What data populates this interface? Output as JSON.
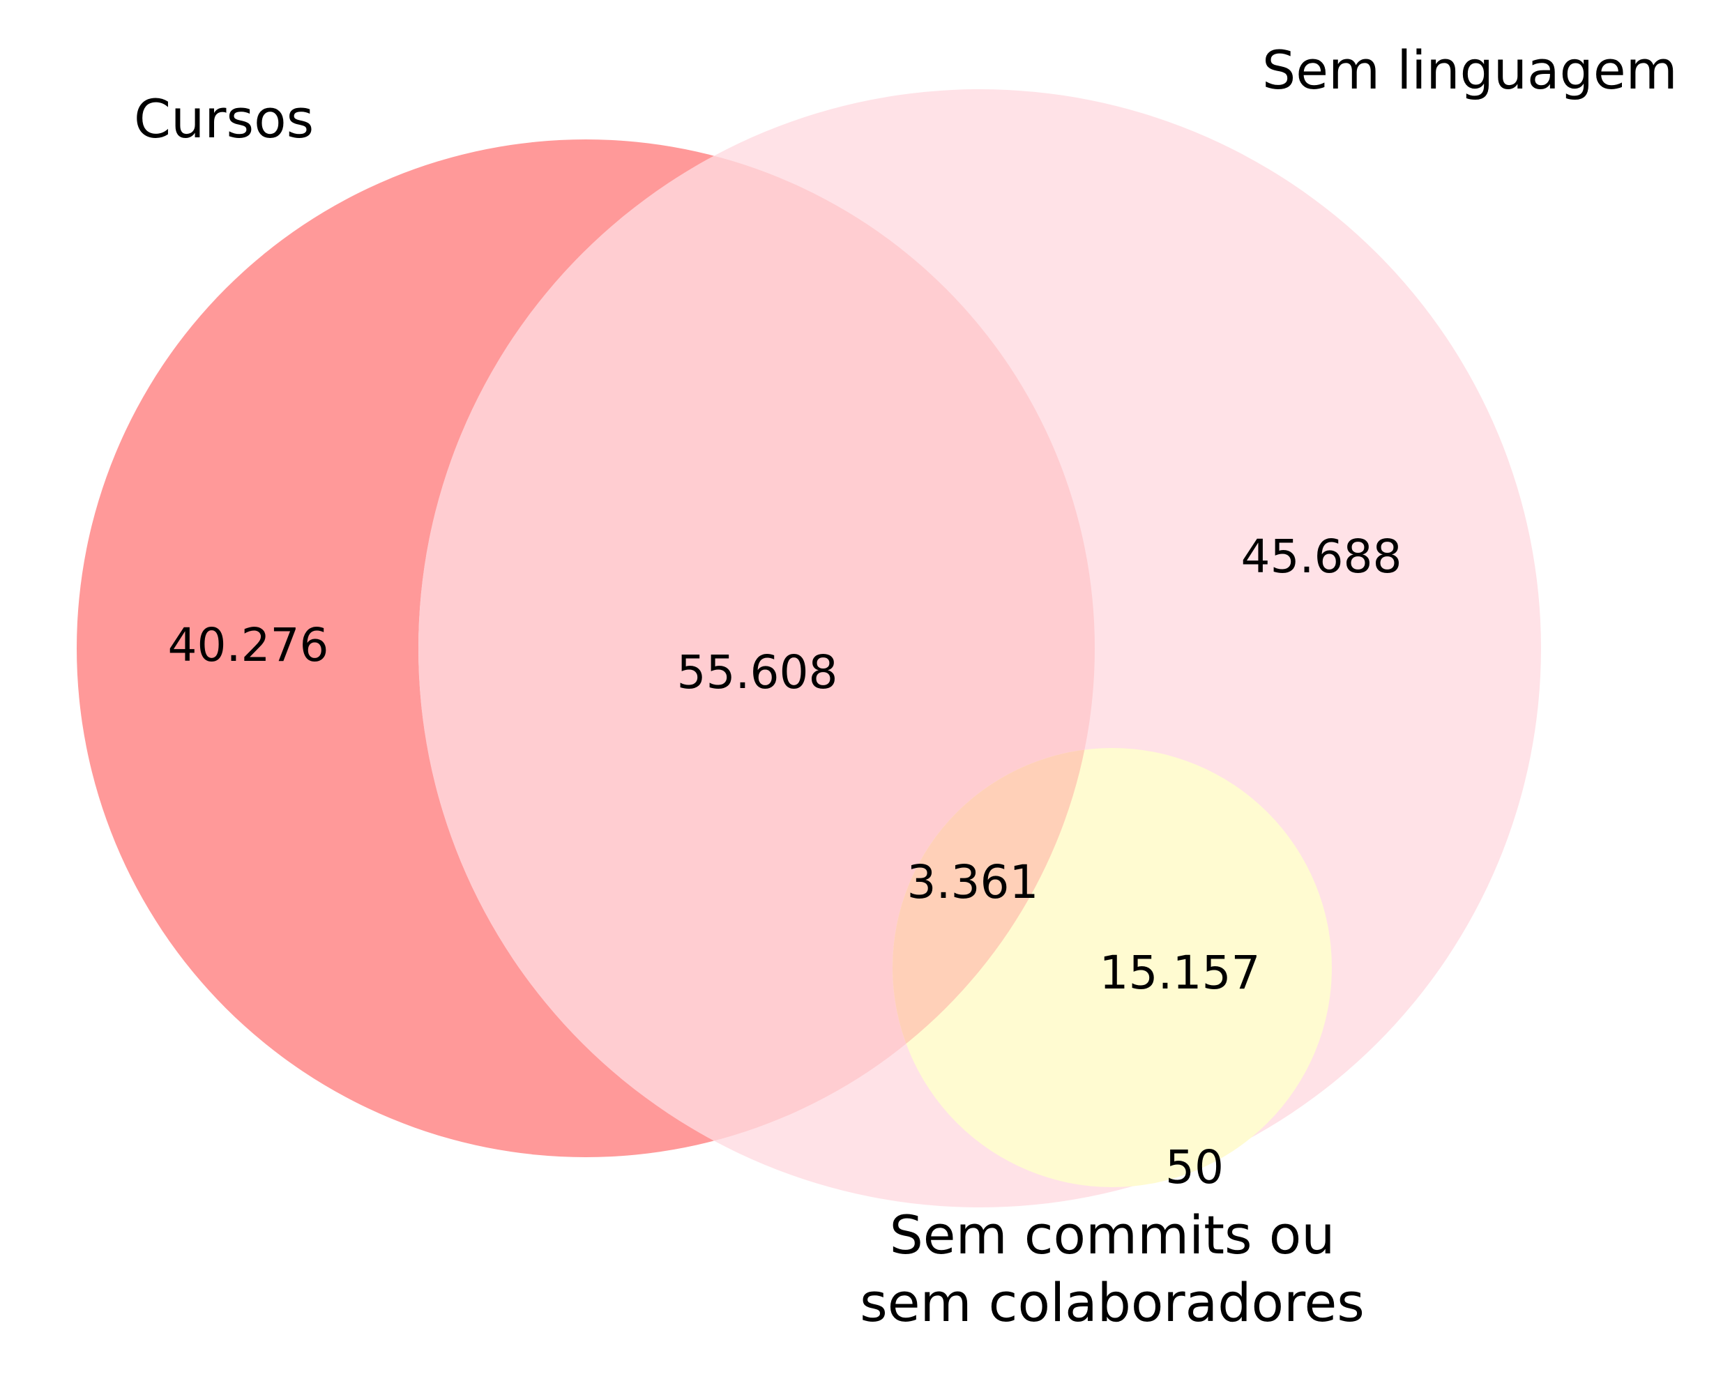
{
  "sets": [
    {
      "label": "Cursos",
      "color": "#ff9999"
    },
    {
      "label": "Sem linguagem",
      "color": "#ffe2e7"
    },
    {
      "label_lines": [
        "Sem commits ou",
        "sem colaboradores"
      ],
      "color": "#fffbd1"
    }
  ],
  "regions": [
    {
      "sets": [
        "Cursos"
      ],
      "value": "40.276"
    },
    {
      "sets": [
        "Cursos",
        "Sem linguagem"
      ],
      "value": "55.608",
      "color": "#ffcdd1"
    },
    {
      "sets": [
        "Sem linguagem"
      ],
      "value": "45.688"
    },
    {
      "sets": [
        "Cursos",
        "Sem linguagem",
        "Sem commits ou sem colaboradores"
      ],
      "value": "3.361",
      "color": "#ffd0b8"
    },
    {
      "sets": [
        "Sem linguagem",
        "Sem commits ou sem colaboradores"
      ],
      "value": "15.157"
    },
    {
      "sets": [
        "Sem commits ou sem colaboradores"
      ],
      "value": "50"
    }
  ]
}
